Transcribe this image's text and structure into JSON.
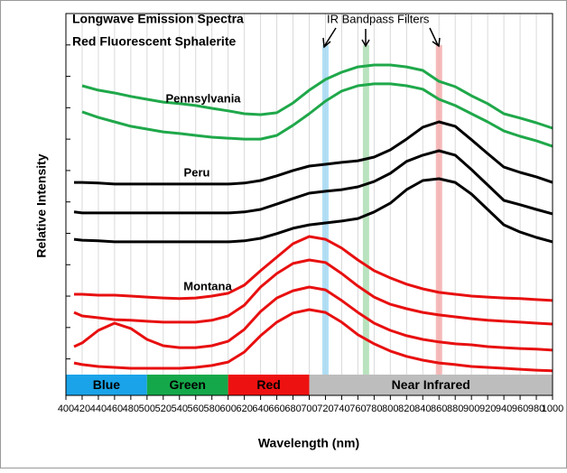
{
  "chart_data": {
    "type": "line",
    "title": "Longwave Emission Spectra",
    "subtitle": "Red Fluorescent Sphalerite",
    "x_label": "Wavelength (nm)",
    "y_label": "Relative Intensity",
    "filter_annotation": "IR Bandpass  Filters",
    "annotations": [
      "Pennsylvania",
      "Peru",
      "Montana"
    ],
    "xlim": [
      400,
      1000
    ],
    "xticks": [
      400,
      420,
      440,
      460,
      480,
      500,
      520,
      540,
      560,
      580,
      600,
      620,
      640,
      660,
      680,
      700,
      720,
      740,
      760,
      780,
      800,
      820,
      840,
      860,
      880,
      900,
      920,
      940,
      960,
      980,
      1000
    ],
    "ylim": [
      0,
      11.5
    ],
    "yticks": [
      0.5,
      1.5,
      2.5,
      3.5,
      4.5,
      5.5,
      6.5,
      7.5,
      8.5,
      9.5,
      10.5,
      11.5
    ],
    "grid": true,
    "filters": [
      {
        "x": 720,
        "color": "#9fd7f2"
      },
      {
        "x": 770,
        "color": "#a8dcae"
      },
      {
        "x": 860,
        "color": "#f4a9a9"
      }
    ],
    "regions": [
      {
        "label": "Blue",
        "start": 400,
        "end": 500,
        "color": "#1aa3e8"
      },
      {
        "label": "Green",
        "start": 500,
        "end": 600,
        "color": "#15a84a"
      },
      {
        "label": "Red",
        "start": 600,
        "end": 700,
        "color": "#ee1111"
      },
      {
        "label": "Near Infrared",
        "start": 700,
        "end": 1000,
        "color": "#bdbdbd"
      }
    ],
    "x": [
      410,
      420,
      440,
      460,
      480,
      500,
      520,
      540,
      560,
      580,
      600,
      620,
      640,
      660,
      680,
      700,
      720,
      740,
      760,
      780,
      800,
      820,
      840,
      860,
      880,
      900,
      920,
      940,
      960,
      980,
      1000
    ],
    "series": [
      {
        "color": "#1fa84a",
        "values": [
          null,
          9.2,
          9.06,
          8.97,
          8.86,
          8.77,
          8.68,
          8.63,
          8.57,
          8.48,
          8.4,
          8.31,
          8.28,
          8.34,
          8.65,
          9.06,
          9.4,
          9.63,
          9.8,
          9.86,
          9.86,
          9.8,
          9.69,
          9.34,
          9.17,
          8.88,
          8.63,
          8.31,
          8.17,
          8.02,
          7.85
        ]
      },
      {
        "color": "#1fa84a",
        "values": [
          null,
          8.37,
          8.19,
          8.05,
          7.91,
          7.82,
          7.73,
          7.68,
          7.62,
          7.56,
          7.53,
          7.5,
          7.5,
          7.62,
          7.94,
          8.31,
          8.71,
          9.03,
          9.2,
          9.26,
          9.26,
          9.2,
          9.09,
          8.77,
          8.57,
          8.31,
          8.05,
          7.76,
          7.59,
          7.45,
          7.27
        ]
      },
      {
        "color": "#000000",
        "values": [
          6.12,
          6.12,
          6.1,
          6.07,
          6.07,
          6.07,
          6.07,
          6.07,
          6.07,
          6.07,
          6.07,
          6.1,
          6.18,
          6.33,
          6.5,
          6.64,
          6.7,
          6.76,
          6.81,
          6.93,
          7.16,
          7.5,
          7.88,
          8.05,
          7.91,
          7.48,
          7.04,
          6.61,
          6.44,
          6.3,
          6.12
        ]
      },
      {
        "color": "#000000",
        "values": [
          5.18,
          5.15,
          5.15,
          5.15,
          5.15,
          5.15,
          5.15,
          5.15,
          5.15,
          5.15,
          5.15,
          5.18,
          5.26,
          5.43,
          5.61,
          5.78,
          5.84,
          5.89,
          5.98,
          6.15,
          6.41,
          6.79,
          6.99,
          7.13,
          6.99,
          6.53,
          6.04,
          5.55,
          5.41,
          5.26,
          5.12
        ]
      },
      {
        "color": "#000000",
        "values": [
          4.31,
          4.28,
          4.26,
          4.23,
          4.23,
          4.23,
          4.23,
          4.23,
          4.23,
          4.23,
          4.23,
          4.26,
          4.34,
          4.49,
          4.66,
          4.77,
          4.83,
          4.89,
          4.97,
          5.18,
          5.46,
          5.89,
          6.18,
          6.24,
          6.12,
          5.75,
          5.26,
          4.77,
          4.54,
          4.37,
          4.23
        ]
      },
      {
        "color": "#e81010",
        "values": [
          2.56,
          2.56,
          2.53,
          2.53,
          2.5,
          2.47,
          2.44,
          2.42,
          2.44,
          2.5,
          2.59,
          2.85,
          3.31,
          3.74,
          4.17,
          4.4,
          4.31,
          4.03,
          3.65,
          3.31,
          3.08,
          2.88,
          2.73,
          2.62,
          2.56,
          2.5,
          2.47,
          2.44,
          2.42,
          2.39,
          2.36
        ]
      },
      {
        "color": "#e81010",
        "values": [
          1.98,
          1.87,
          1.81,
          1.75,
          1.73,
          1.7,
          1.67,
          1.67,
          1.67,
          1.73,
          1.87,
          2.21,
          2.79,
          3.22,
          3.54,
          3.65,
          3.57,
          3.22,
          2.82,
          2.47,
          2.24,
          2.1,
          1.98,
          1.9,
          1.84,
          1.78,
          1.73,
          1.7,
          1.67,
          1.64,
          1.61
        ]
      },
      {
        "color": "#e81010",
        "values": [
          0.89,
          1.01,
          1.41,
          1.64,
          1.47,
          1.12,
          0.92,
          0.86,
          0.86,
          0.92,
          1.06,
          1.44,
          2.01,
          2.44,
          2.67,
          2.79,
          2.7,
          2.36,
          1.98,
          1.64,
          1.41,
          1.24,
          1.12,
          1.04,
          0.98,
          0.95,
          0.89,
          0.86,
          0.83,
          0.81,
          0.78
        ]
      },
      {
        "color": "#e81010",
        "values": [
          0.37,
          0.32,
          0.26,
          0.23,
          0.2,
          0.2,
          0.2,
          0.2,
          0.23,
          0.29,
          0.4,
          0.72,
          1.24,
          1.67,
          1.96,
          2.07,
          1.98,
          1.67,
          1.27,
          0.98,
          0.75,
          0.58,
          0.46,
          0.37,
          0.32,
          0.26,
          0.23,
          0.2,
          0.17,
          0.14,
          0.12
        ]
      }
    ]
  }
}
